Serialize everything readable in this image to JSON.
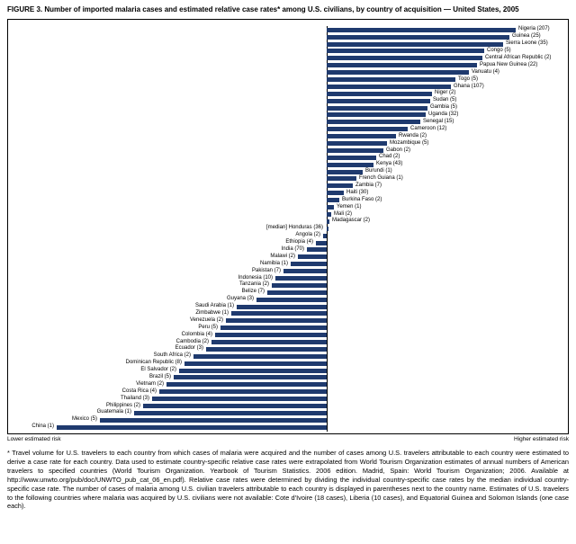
{
  "title": "FIGURE 3. Number of imported malaria cases and estimated relative case rates* among U.S. civilians, by country of acquisition — United States, 2005",
  "footnote": "* Travel volume for U.S. travelers to each country from which cases of malaria were acquired and the number of cases among U.S. travelers attributable to each country were estimated to derive a case rate for each country. Data used to estimate country-specific relative case rates were extrapolated from World Tourism Organization estimates of annual numbers of American travelers to specified countries (World Tourism Organization. Yearbook of Tourism Statistics. 2006 edition. Madrid, Spain: World Tourism Organization; 2006. Available at http://www.unwto.org/pub/doc/UNWTO_pub_cat_06_en.pdf). Relative case rates were determined by dividing the individual country-specific case rates by the median individual country-specific case rate. The number of cases of malaria among U.S. civilian travelers attributable to each country is displayed in parentheses next to the country name. Estimates of U.S. travelers to the following countries where malaria was acquired by U.S. civilians were not available: Cote d'Ivoire (18 cases), Liberia (10 cases), and Equatorial Guinea and Solomon Islands (one case each).",
  "chart_data": {
    "type": "bar",
    "subtype": "diverging-horizontal",
    "bar_color": "#1f3a6e",
    "axis_lower": "Lower estimated risk",
    "axis_higher": "Higher estimated risk",
    "median_entry": "[median] Honduras (36)",
    "series": [
      {
        "label": "Nigeria (207)",
        "country": "Nigeria",
        "cases": 207,
        "side": "higher",
        "len": 210
      },
      {
        "label": "Guinea (25)",
        "country": "Guinea",
        "cases": 25,
        "side": "higher",
        "len": 203
      },
      {
        "label": "Sierra Leone (35)",
        "country": "Sierra Leone",
        "cases": 35,
        "side": "higher",
        "len": 196
      },
      {
        "label": "Congo (5)",
        "country": "Congo",
        "cases": 5,
        "side": "higher",
        "len": 175
      },
      {
        "label": "Central African Republic (2)",
        "country": "Central African Republic",
        "cases": 2,
        "side": "higher",
        "len": 173
      },
      {
        "label": "Papua New Guinea (22)",
        "country": "Papua New Guinea",
        "cases": 22,
        "side": "higher",
        "len": 167
      },
      {
        "label": "Vanuatu (4)",
        "country": "Vanuatu",
        "cases": 4,
        "side": "higher",
        "len": 158
      },
      {
        "label": "Togo (5)",
        "country": "Togo",
        "cases": 5,
        "side": "higher",
        "len": 143
      },
      {
        "label": "Ghana (107)",
        "country": "Ghana",
        "cases": 107,
        "side": "higher",
        "len": 138
      },
      {
        "label": "Niger (2)",
        "country": "Niger",
        "cases": 2,
        "side": "higher",
        "len": 117
      },
      {
        "label": "Sudan (5)",
        "country": "Sudan",
        "cases": 5,
        "side": "higher",
        "len": 115
      },
      {
        "label": "Gambia (5)",
        "country": "Gambia",
        "cases": 5,
        "side": "higher",
        "len": 112
      },
      {
        "label": "Uganda (32)",
        "country": "Uganda",
        "cases": 32,
        "side": "higher",
        "len": 110
      },
      {
        "label": "Senegal (15)",
        "country": "Senegal",
        "cases": 15,
        "side": "higher",
        "len": 104
      },
      {
        "label": "Cameroon (12)",
        "country": "Cameroon",
        "cases": 12,
        "side": "higher",
        "len": 90
      },
      {
        "label": "Rwanda (2)",
        "country": "Rwanda",
        "cases": 2,
        "side": "higher",
        "len": 77
      },
      {
        "label": "Mozambique (5)",
        "country": "Mozambique",
        "cases": 5,
        "side": "higher",
        "len": 67
      },
      {
        "label": "Gabon (2)",
        "country": "Gabon",
        "cases": 2,
        "side": "higher",
        "len": 63
      },
      {
        "label": "Chad (2)",
        "country": "Chad",
        "cases": 2,
        "side": "higher",
        "len": 55
      },
      {
        "label": "Kenya (43)",
        "country": "Kenya",
        "cases": 43,
        "side": "higher",
        "len": 52
      },
      {
        "label": "Burundi (1)",
        "country": "Burundi",
        "cases": 1,
        "side": "higher",
        "len": 40
      },
      {
        "label": "French Guiana (1)",
        "country": "French Guiana",
        "cases": 1,
        "side": "higher",
        "len": 33
      },
      {
        "label": "Zambia (7)",
        "country": "Zambia",
        "cases": 7,
        "side": "higher",
        "len": 29
      },
      {
        "label": "Haiti (30)",
        "country": "Haiti",
        "cases": 30,
        "side": "higher",
        "len": 19
      },
      {
        "label": "Burkina Faso (2)",
        "country": "Burkina Faso",
        "cases": 2,
        "side": "higher",
        "len": 14
      },
      {
        "label": "Yemen (1)",
        "country": "Yemen",
        "cases": 1,
        "side": "higher",
        "len": 8
      },
      {
        "label": "Mali (2)",
        "country": "Mali",
        "cases": 2,
        "side": "higher",
        "len": 5
      },
      {
        "label": "Madagascar (2)",
        "country": "Madagascar",
        "cases": 2,
        "side": "higher",
        "len": 3
      },
      {
        "label": "[median] Honduras (36)",
        "country": "Honduras",
        "cases": 36,
        "side": "median",
        "len": 2
      },
      {
        "label": "Angola (2)",
        "country": "Angola",
        "cases": 2,
        "side": "lower",
        "len": 4
      },
      {
        "label": "Ethiopia (4)",
        "country": "Ethiopia",
        "cases": 4,
        "side": "lower",
        "len": 12
      },
      {
        "label": "India (70)",
        "country": "India",
        "cases": 70,
        "side": "lower",
        "len": 22
      },
      {
        "label": "Malawi (2)",
        "country": "Malawi",
        "cases": 2,
        "side": "lower",
        "len": 32
      },
      {
        "label": "Namibia (1)",
        "country": "Namibia",
        "cases": 1,
        "side": "lower",
        "len": 40
      },
      {
        "label": "Pakistan (7)",
        "country": "Pakistan",
        "cases": 7,
        "side": "lower",
        "len": 48
      },
      {
        "label": "Indonesia (10)",
        "country": "Indonesia",
        "cases": 10,
        "side": "lower",
        "len": 57
      },
      {
        "label": "Tanzania (2)",
        "country": "Tanzania",
        "cases": 2,
        "side": "lower",
        "len": 61
      },
      {
        "label": "Belize (7)",
        "country": "Belize",
        "cases": 7,
        "side": "lower",
        "len": 66
      },
      {
        "label": "Guyana (3)",
        "country": "Guyana",
        "cases": 3,
        "side": "lower",
        "len": 78
      },
      {
        "label": "Saudi Arabia (1)",
        "country": "Saudi Arabia",
        "cases": 1,
        "side": "lower",
        "len": 100
      },
      {
        "label": "Zimbabwe (1)",
        "country": "Zimbabwe",
        "cases": 1,
        "side": "lower",
        "len": 106
      },
      {
        "label": "Venezuela (2)",
        "country": "Venezuela",
        "cases": 2,
        "side": "lower",
        "len": 112
      },
      {
        "label": "Peru (5)",
        "country": "Peru",
        "cases": 5,
        "side": "lower",
        "len": 118
      },
      {
        "label": "Colombia (4)",
        "country": "Colombia",
        "cases": 4,
        "side": "lower",
        "len": 124
      },
      {
        "label": "Cambodia (2)",
        "country": "Cambodia",
        "cases": 2,
        "side": "lower",
        "len": 128
      },
      {
        "label": "Ecuador (3)",
        "country": "Ecuador",
        "cases": 3,
        "side": "lower",
        "len": 134
      },
      {
        "label": "South Africa (2)",
        "country": "South Africa",
        "cases": 2,
        "side": "lower",
        "len": 148
      },
      {
        "label": "Dominican Republic (8)",
        "country": "Dominican Republic",
        "cases": 8,
        "side": "lower",
        "len": 158
      },
      {
        "label": "El Salvador (2)",
        "country": "El Salvador",
        "cases": 2,
        "side": "lower",
        "len": 164
      },
      {
        "label": "Brazil (5)",
        "country": "Brazil",
        "cases": 5,
        "side": "lower",
        "len": 170
      },
      {
        "label": "Vietnam (2)",
        "country": "Vietnam",
        "cases": 2,
        "side": "lower",
        "len": 178
      },
      {
        "label": "Costa Rica (4)",
        "country": "Costa Rica",
        "cases": 4,
        "side": "lower",
        "len": 186
      },
      {
        "label": "Thailand (3)",
        "country": "Thailand",
        "cases": 3,
        "side": "lower",
        "len": 194
      },
      {
        "label": "Philippines (2)",
        "country": "Philippines",
        "cases": 2,
        "side": "lower",
        "len": 204
      },
      {
        "label": "Guatemala (1)",
        "country": "Guatemala",
        "cases": 1,
        "side": "lower",
        "len": 214
      },
      {
        "label": "Mexico (5)",
        "country": "Mexico",
        "cases": 5,
        "side": "lower",
        "len": 252
      },
      {
        "label": "China (1)",
        "country": "China",
        "cases": 1,
        "side": "lower",
        "len": 300
      }
    ]
  }
}
